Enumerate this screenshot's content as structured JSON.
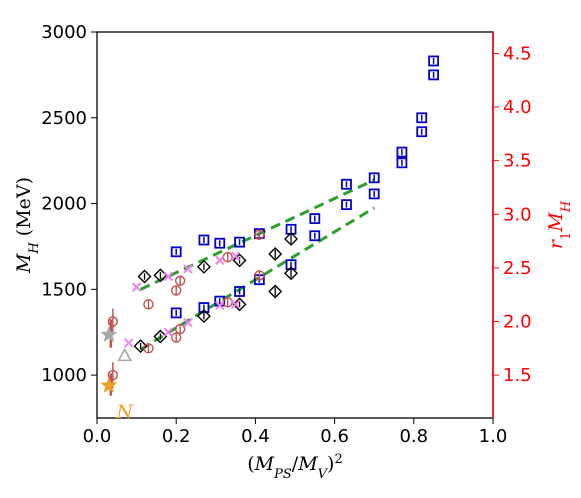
{
  "chart_data": {
    "type": "scatter",
    "title": "",
    "xlabel": "(M_PS/M_V)^2",
    "ylabel_left": "M_H (MeV)",
    "ylabel_right": "r_1 M_H",
    "xlim": [
      0.0,
      1.0
    ],
    "ylim_left": [
      750,
      3000
    ],
    "ylim_right": [
      1.1,
      4.7
    ],
    "xticks": [
      "0.0",
      "0.2",
      "0.4",
      "0.6",
      "0.8",
      "1.0"
    ],
    "yticks_left": [
      "1000",
      "1500",
      "2000",
      "2500",
      "3000"
    ],
    "yticks_right": [
      "1.5",
      "2.0",
      "2.5",
      "3.0",
      "3.5",
      "4.0",
      "4.5"
    ],
    "grid": false,
    "colors": {
      "right_axis": "#ff0000",
      "blue_squares": "#0000cc",
      "black_diamonds": "#000000",
      "red_circles": "#c0504d",
      "violet_crosses": "#ee82ee",
      "fits": "#2ca02c",
      "grey_star": "#a8a8a8",
      "orange_star": "#f0a020",
      "triangle": "#a8a8a8",
      "error_red": "#c0504d"
    },
    "series": [
      {
        "marker": "blue-square",
        "axis": "right",
        "x": [
          0.2,
          0.27,
          0.31,
          0.36,
          0.41,
          0.49,
          0.55,
          0.63,
          0.7,
          0.77,
          0.82,
          0.85,
          0.2,
          0.27,
          0.31,
          0.36,
          0.41,
          0.49,
          0.55,
          0.63,
          0.7,
          0.77,
          0.82,
          0.85
        ],
        "y": [
          2.65,
          2.76,
          2.73,
          2.74,
          2.82,
          2.86,
          2.96,
          3.28,
          3.34,
          3.58,
          3.9,
          4.43,
          2.08,
          2.13,
          2.19,
          2.28,
          2.39,
          2.53,
          2.8,
          3.09,
          3.19,
          3.48,
          3.77,
          4.3
        ]
      },
      {
        "marker": "black-diamond",
        "axis": "right",
        "x": [
          0.12,
          0.16,
          0.27,
          0.36,
          0.45,
          0.49,
          0.11,
          0.16,
          0.27,
          0.36,
          0.45,
          0.49
        ],
        "y": [
          2.42,
          2.43,
          2.51,
          2.57,
          2.63,
          2.77,
          1.77,
          1.86,
          2.05,
          2.16,
          2.28,
          2.45
        ],
        "yerr": [
          0.03,
          0.03,
          0.03,
          0.03,
          0.04,
          0.04,
          0.03,
          0.03,
          0.03,
          0.03,
          0.04,
          0.04
        ]
      },
      {
        "marker": "red-circle",
        "axis": "right",
        "x": [
          0.04,
          0.13,
          0.2,
          0.21,
          0.33,
          0.41,
          0.04,
          0.13,
          0.2,
          0.21,
          0.33,
          0.41
        ],
        "y": [
          2.0,
          2.16,
          2.29,
          2.38,
          2.6,
          2.81,
          1.5,
          1.75,
          1.85,
          1.93,
          2.18,
          2.43
        ],
        "yerr": [
          0.12,
          0.04,
          0.04,
          0.04,
          0.05,
          0.05,
          0.12,
          0.04,
          0.04,
          0.04,
          0.05,
          0.05
        ]
      },
      {
        "marker": "violet-cross",
        "axis": "right",
        "x": [
          0.1,
          0.18,
          0.23,
          0.31,
          0.35,
          0.08,
          0.18,
          0.23,
          0.31,
          0.35
        ],
        "y": [
          2.32,
          2.42,
          2.49,
          2.57,
          2.61,
          1.8,
          1.9,
          1.99,
          2.15,
          2.16
        ]
      },
      {
        "marker": "grey-star",
        "axis": "left",
        "x": [
          0.03
        ],
        "y": [
          1235
        ]
      },
      {
        "marker": "orange-star",
        "axis": "left",
        "x": [
          0.03
        ],
        "y": [
          939
        ]
      },
      {
        "marker": "grey-triangle",
        "axis": "left",
        "x": [
          0.07
        ],
        "y": [
          1115
        ]
      }
    ],
    "fits": [
      {
        "axis": "right",
        "x": [
          0.11,
          0.7
        ],
        "y": [
          2.3,
          3.32
        ]
      },
      {
        "axis": "right",
        "x": [
          0.11,
          0.7
        ],
        "y": [
          1.74,
          3.06
        ]
      }
    ],
    "errorbars_left": [
      {
        "x": 0.035,
        "y1": 1160,
        "y2": 1325
      },
      {
        "x": 0.035,
        "y1": 880,
        "y2": 1010
      }
    ],
    "annotations": [
      {
        "text": "N",
        "x": 0.07,
        "y": 855,
        "axis": "left",
        "color": "#f0a020"
      }
    ]
  }
}
